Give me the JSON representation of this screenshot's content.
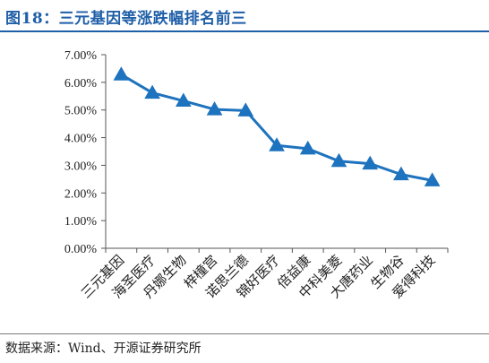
{
  "title": "图18：三元基因等涨跌幅排名前三",
  "source": "数据来源：Wind、开源证券研究所",
  "colors": {
    "accent": "#1f5fa8",
    "series": "#1e73be",
    "axis": "#555555",
    "text": "#222222"
  },
  "chart_data": {
    "type": "line",
    "title": "",
    "xlabel": "",
    "ylabel": "",
    "ylim": [
      0,
      7
    ],
    "yticks": [
      0,
      1,
      2,
      3,
      4,
      5,
      6,
      7
    ],
    "ytick_labels": [
      "0.00%",
      "1.00%",
      "2.00%",
      "3.00%",
      "4.00%",
      "5.00%",
      "6.00%",
      "7.00%"
    ],
    "grid": false,
    "legend": "none",
    "marker": "triangle",
    "categories": [
      "三元基因",
      "海圣医疗",
      "丹娜生物",
      "梓橦宫",
      "诺思兰德",
      "锦好医疗",
      "倍益康",
      "中科美菱",
      "大唐药业",
      "生物谷",
      "爱得科技"
    ],
    "values": [
      6.28,
      5.62,
      5.33,
      5.02,
      4.98,
      3.72,
      3.6,
      3.15,
      3.06,
      2.67,
      2.45
    ]
  }
}
